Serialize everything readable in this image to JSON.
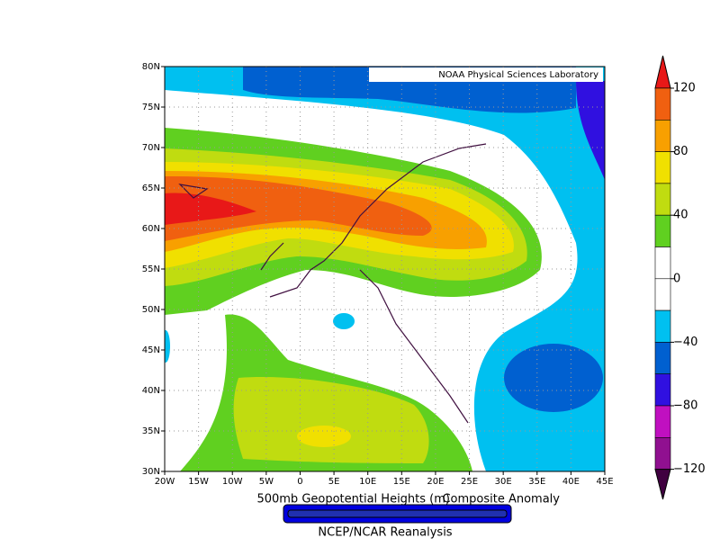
{
  "map": {
    "credit": "NOAA Physical Sciences Laboratory",
    "lat_labels": [
      "80N",
      "75N",
      "70N",
      "65N",
      "60N",
      "55N",
      "50N",
      "45N",
      "40N",
      "35N",
      "30N"
    ],
    "lon_labels": [
      "20W",
      "15W",
      "10W",
      "5W",
      "0",
      "5E",
      "10E",
      "15E",
      "20E",
      "25E",
      "30E",
      "35E",
      "40E",
      "45E"
    ],
    "caption": "500mb Geopotential Heights (m)",
    "subcaption": "Composite Anomaly",
    "source": "NCEP/NCAR Reanalysis"
  },
  "colorbar": {
    "labels": [
      "120",
      "80",
      "40",
      "0",
      "−40",
      "−80",
      "−120"
    ]
  }
}
